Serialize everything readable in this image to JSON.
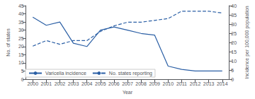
{
  "chart_data": {
    "type": "line",
    "x": [
      2000,
      2001,
      2002,
      2003,
      2004,
      2005,
      2006,
      2007,
      2008,
      2009,
      2010,
      2011,
      2012,
      2013,
      2014
    ],
    "series": [
      {
        "name": "Varicella incidence",
        "color": "#2b5fa5",
        "line_style": "solid",
        "values": [
          38,
          33,
          35,
          22,
          20,
          30,
          32,
          30,
          28,
          27,
          8,
          6,
          5,
          5,
          5
        ]
      },
      {
        "name": "No. states reporting",
        "color": "#2b5fa5",
        "line_style": "dashed",
        "axis": "y2",
        "values": [
          18,
          21,
          19,
          21,
          21,
          26,
          29,
          31,
          31,
          32,
          33,
          37,
          37,
          37,
          36
        ]
      }
    ],
    "xlabel": "Year",
    "ylabel": "No. of states",
    "y2label": "Incidence per 100,000 population",
    "xlim": [
      1999.5,
      2014.5
    ],
    "xticks": [
      2000,
      2001,
      2002,
      2003,
      2004,
      2005,
      2006,
      2007,
      2008,
      2009,
      2010,
      2011,
      2012,
      2013,
      2014
    ],
    "ylim": [
      0,
      45
    ],
    "yticks": [
      0,
      5,
      10,
      15,
      20,
      25,
      30,
      35,
      40,
      45
    ],
    "y2lim": [
      0,
      40
    ],
    "y2ticks": [
      0,
      5,
      10,
      15,
      20,
      25,
      30,
      35,
      40
    ],
    "grid": false,
    "legend": "lower left"
  }
}
